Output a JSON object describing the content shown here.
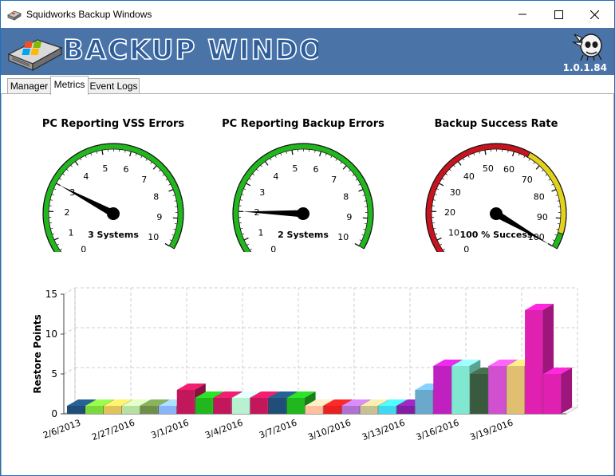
{
  "window": {
    "title": "Squidworks Backup Windows",
    "buttons": {
      "minimize": "minimize",
      "maximize": "maximize",
      "close": "close"
    }
  },
  "banner": {
    "title": "BACKUP WINDOWS",
    "version": "1.0.1.84",
    "background": "#4a74a8"
  },
  "tabs": [
    {
      "label": "Manager",
      "active": false
    },
    {
      "label": "Metrics",
      "active": true
    },
    {
      "label": "Event Logs",
      "active": false
    }
  ],
  "gauges": [
    {
      "title": "PC Reporting VSS Errors",
      "min": 0,
      "max": 10,
      "ticks": [
        "0",
        "1",
        "2",
        "3",
        "4",
        "5",
        "6",
        "7",
        "8",
        "9",
        "10"
      ],
      "value": 3,
      "center_label": "3 Systems",
      "style": "green"
    },
    {
      "title": "PC Reporting Backup Errors",
      "min": 0,
      "max": 10,
      "ticks": [
        "0",
        "1",
        "2",
        "3",
        "4",
        "5",
        "6",
        "7",
        "8",
        "9",
        "10"
      ],
      "value": 2,
      "center_label": "2 Systems",
      "style": "green"
    },
    {
      "title": "Backup Success Rate",
      "min": 0,
      "max": 100,
      "ticks": [
        "0",
        "10",
        "20",
        "30",
        "40",
        "50",
        "60",
        "70",
        "80",
        "90",
        "100"
      ],
      "value": 100,
      "center_label": "100 % Success",
      "style": "red-yellow-green"
    }
  ],
  "colors": {
    "gauge_green": "#22b61f",
    "gauge_red": "#c8141e",
    "gauge_yellow": "#e2d21c",
    "needle": "#000000"
  },
  "chart_data": {
    "type": "bar",
    "ylabel": "Restore Points",
    "ylim": [
      0,
      15
    ],
    "yticks": [
      "0",
      "5",
      "10",
      "15"
    ],
    "xtick_labels": [
      "2/6/2013",
      "2/27/2016",
      "3/1/2016",
      "3/4/2016",
      "3/7/2016",
      "3/10/2016",
      "3/13/2016",
      "3/16/2016",
      "3/19/2016"
    ],
    "grid": true,
    "values": [
      1,
      1,
      1,
      1,
      1,
      1,
      3,
      2,
      2,
      2,
      2,
      2,
      2,
      1,
      1,
      1,
      1,
      1,
      1,
      3,
      6,
      6,
      5,
      6,
      6,
      13,
      5
    ],
    "colors": [
      "#1f4e79",
      "#7ad83d",
      "#e0c35a",
      "#b8e0a0",
      "#6e8f4a",
      "#8ab4f8",
      "#c2185b",
      "#22b61f",
      "#c2185b",
      "#b8f0d0",
      "#c2185b",
      "#1f4e79",
      "#22b61f",
      "#ffc0a0",
      "#e82020",
      "#b070d0",
      "#c8c090",
      "#40d8f0",
      "#8020a0",
      "#6aa8cc",
      "#c020c0",
      "#80e8d0",
      "#3a5a40",
      "#d050d0",
      "#e0c070",
      "#e020b0",
      "#e020b0"
    ]
  }
}
